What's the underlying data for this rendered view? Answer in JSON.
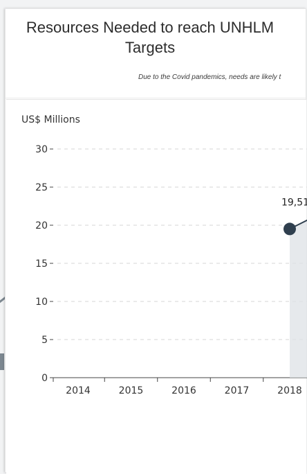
{
  "header": {
    "title": "Resources Needed to reach UNHLM Targets",
    "subtitle": "Due to the Covid pandemics, needs are likely t"
  },
  "chart_data": {
    "type": "line",
    "title": "",
    "ylabel": "US$ Millions",
    "xlabel": "",
    "ylim": [
      0,
      30
    ],
    "yticks": [
      "0",
      "5",
      "10",
      "15",
      "20",
      "25",
      "30"
    ],
    "categories": [
      "2014",
      "2015",
      "2016",
      "2017",
      "2018"
    ],
    "series": [
      {
        "values": [
          null,
          null,
          null,
          null,
          19.51
        ]
      }
    ],
    "data_labels": [
      "",
      "",
      "",
      "",
      "19,51"
    ],
    "grid": true,
    "colors": {
      "line": "#2f3f4e",
      "area": "#dde1e5",
      "grid": "#d6d6d6",
      "axis": "#444444"
    }
  }
}
